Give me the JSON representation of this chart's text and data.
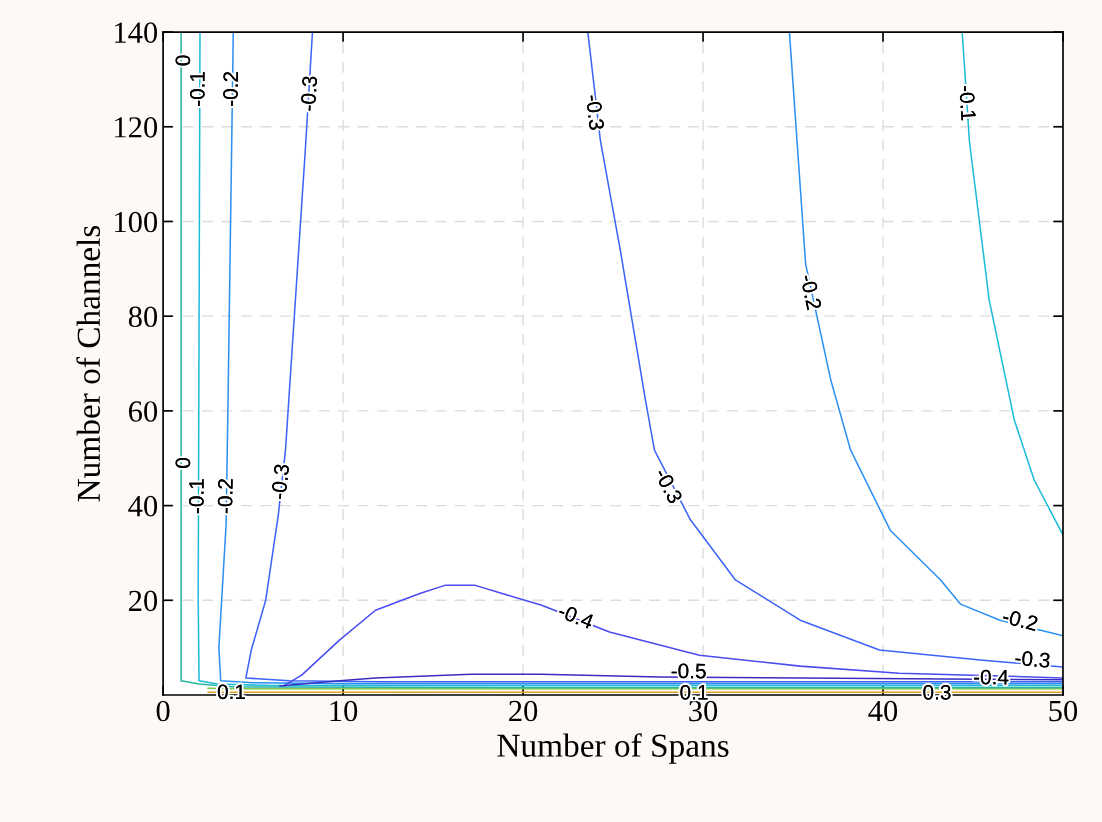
{
  "chart_data": {
    "type": "line",
    "xlabel": "Number of Spans",
    "ylabel": "Number of Channels",
    "xlim": [
      0,
      50
    ],
    "ylim": [
      0,
      140
    ],
    "xticks": [
      0,
      10,
      20,
      30,
      40,
      50
    ],
    "yticks": [
      20,
      40,
      60,
      80,
      100,
      120,
      140
    ],
    "grid": true,
    "legend": false,
    "line_style": "solid",
    "marker": "none",
    "series": [
      {
        "color": "#7cc850",
        "x": [
          2.5,
          4,
          20,
          50
        ],
        "values": [
          1.4,
          1.3,
          1.3,
          1.3
        ]
      },
      {
        "color": "#e0a020",
        "x": [
          2.5,
          5,
          20,
          50
        ],
        "values": [
          0.6,
          0.6,
          0.6,
          0.6
        ]
      },
      {
        "color": "#2ab5a0",
        "x": [
          1,
          1,
          2,
          4,
          20,
          50
        ],
        "values": [
          140,
          3,
          2.3,
          1.7,
          1.6,
          1.6
        ]
      },
      {
        "color": "#1cbcd8",
        "x": [
          2.05,
          1.95,
          2.0,
          3,
          6,
          20,
          50
        ],
        "values": [
          140,
          20,
          3,
          2.3,
          2.0,
          2.0,
          2.0
        ]
      },
      {
        "color": "#2c90f0",
        "x": [
          3.9,
          3.6,
          3.5,
          3.1,
          3.2,
          5,
          10,
          30,
          50
        ],
        "values": [
          140,
          60,
          36,
          10,
          3,
          2.6,
          2.4,
          2.4,
          2.4
        ]
      },
      {
        "color": "#3c64f8",
        "x": [
          8.3,
          7.9,
          6.8,
          6.4,
          5.7,
          4.9,
          4.6,
          7,
          12,
          30,
          50
        ],
        "values": [
          140,
          115,
          51.7,
          38,
          20,
          9.5,
          3.6,
          3.0,
          2.8,
          2.8,
          2.8
        ]
      },
      {
        "color": "#3c64f8",
        "x": [
          23.6,
          24.3,
          25.4,
          26.8,
          27.3,
          29.3,
          31.8,
          35.4,
          39.8,
          45.4,
          50
        ],
        "values": [
          140,
          117,
          94,
          62.3,
          51.7,
          37,
          24.3,
          15.8,
          9.5,
          7.4,
          5.9
        ]
      },
      {
        "color": "#2c90f0",
        "x": [
          34.8,
          35.7,
          37.1,
          38.2,
          40.4,
          43.2,
          44.3,
          46.5,
          50
        ],
        "values": [
          140,
          91,
          66.5,
          51.7,
          34.8,
          24.3,
          19.2,
          15.8,
          12.5
        ]
      },
      {
        "color": "#1cbcd8",
        "x": [
          44.4,
          44.8,
          45.9,
          47.3,
          48.4,
          50
        ],
        "values": [
          140,
          117,
          83.4,
          58,
          45.4,
          33.8
        ]
      },
      {
        "color": "#4a4cf0",
        "x": [
          6.7,
          7.7,
          9.8,
          11.8,
          14.3,
          15.7,
          17.3,
          20.1,
          21,
          24.8,
          29.8,
          35.4,
          40.9,
          46.5,
          50
        ],
        "values": [
          1.9,
          4.2,
          11.6,
          17.9,
          21.5,
          23.2,
          23.2,
          20,
          19,
          13.3,
          8.4,
          6.1,
          4.6,
          4.0,
          3.6
        ]
      },
      {
        "color": "#3a2cc0",
        "x": [
          6.5,
          9.8,
          11.8,
          17.1,
          21,
          27.6,
          35.4,
          50
        ],
        "values": [
          1.9,
          3.0,
          3.6,
          4.4,
          4.4,
          3.8,
          3.6,
          3.2
        ]
      }
    ],
    "annotations": [
      {
        "text": "0",
        "x": 1,
        "y": 134
      },
      {
        "text": "0",
        "x": 1,
        "y": 49
      },
      {
        "text": "-0.1",
        "x": 2.0,
        "y": 128
      },
      {
        "text": "-0.1",
        "x": 1.95,
        "y": 42
      },
      {
        "text": "-0.2",
        "x": 3.85,
        "y": 128
      },
      {
        "text": "-0.2",
        "x": 3.55,
        "y": 42
      },
      {
        "text": "-0.3",
        "x": 8.2,
        "y": 127
      },
      {
        "text": "-0.3",
        "x": 6.6,
        "y": 45
      },
      {
        "text": "-0.3",
        "x": 23.9,
        "y": 123
      },
      {
        "text": "-0.3",
        "x": 28.0,
        "y": 44
      },
      {
        "text": "-0.2",
        "x": 35.9,
        "y": 85
      },
      {
        "text": "-0.1",
        "x": 44.6,
        "y": 125
      },
      {
        "text": "-0.4",
        "x": 22.9,
        "y": 16.3
      },
      {
        "text": "-0.2",
        "x": 47.6,
        "y": 15.5
      },
      {
        "text": "-0.3",
        "x": 48.3,
        "y": 7.2
      },
      {
        "text": "-0.4",
        "x": 46,
        "y": 3.4
      },
      {
        "text": "-0.5",
        "x": 29.2,
        "y": 4.7
      },
      {
        "text": "0.1",
        "x": 3.8,
        "y": 0.3
      },
      {
        "text": "0.1",
        "x": 29.5,
        "y": 0.2
      },
      {
        "text": "0.3",
        "x": 43.0,
        "y": 0.2
      }
    ]
  }
}
